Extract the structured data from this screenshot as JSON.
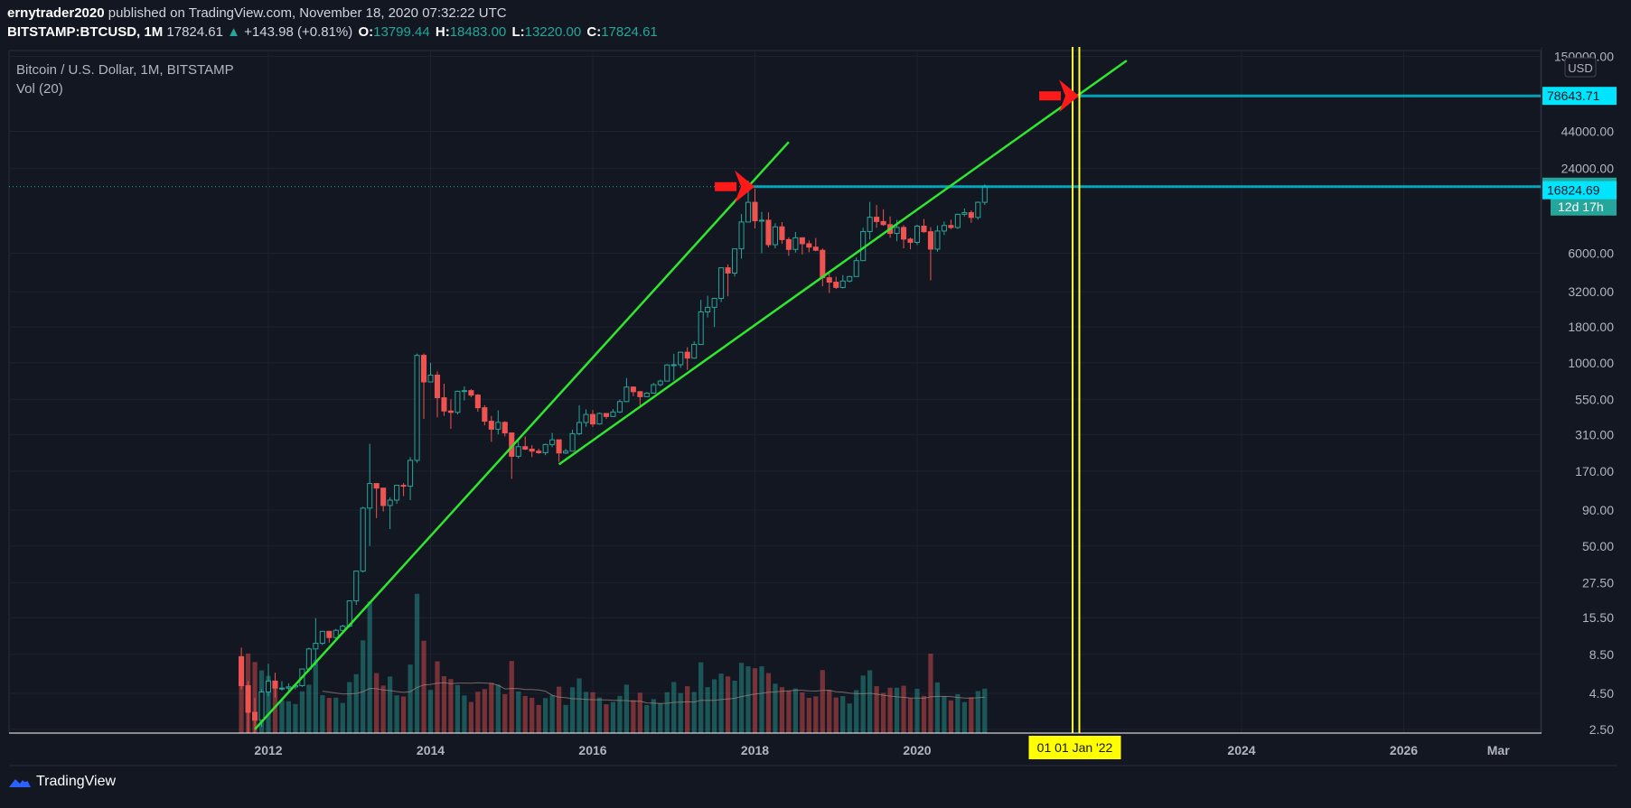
{
  "header": {
    "author": "ernytrader2020",
    "published_text": "published on TradingView.com, November 18, 2020 07:32:22 UTC",
    "symbol": "BITSTAMP:BTCUSD, 1M",
    "price": "17824.61",
    "change": "+143.98 (+0.81%)",
    "o_label": "O:",
    "o": "13799.44",
    "h_label": "H:",
    "h": "18483.00",
    "l_label": "L:",
    "l": "13220.00",
    "c_label": "C:",
    "c": "17824.61"
  },
  "legend": {
    "title": "Bitcoin / U.S. Dollar, 1M, BITSTAMP",
    "vol": "Vol (20)"
  },
  "axis": {
    "currency": "USD",
    "y_ticks": [
      "150000.00",
      "44000.00",
      "24000.00",
      "6000.00",
      "3200.00",
      "1800.00",
      "1000.00",
      "550.00",
      "310.00",
      "170.00",
      "90.00",
      "50.00",
      "27.50",
      "15.50",
      "8.50",
      "4.50",
      "2.50"
    ],
    "x_ticks": [
      "2012",
      "2014",
      "2016",
      "2018",
      "2020",
      "2024",
      "2026",
      "Mar"
    ],
    "x_highlight": "01 01 Jan '22"
  },
  "labels": {
    "target": "78643.71",
    "current": "17824.61",
    "countdown": "12d 17h",
    "secondary": "16824.69"
  },
  "footer": {
    "brand": "TradingView"
  },
  "colors": {
    "background": "#131722",
    "up": "#26a69a",
    "down": "#ef5350",
    "trendline": "#2ee82e",
    "vertical": "#ffff33",
    "arrow": "#ff1a1a",
    "hline": "#00bcd4"
  },
  "chart_data": {
    "type": "candlestick",
    "title": "Bitcoin / U.S. Dollar, 1M, BITSTAMP",
    "y_scale": "log",
    "y_range": [
      2.5,
      150000
    ],
    "x_range": [
      "2011-08",
      "2027-05"
    ],
    "candles": [
      {
        "t": "2011-09",
        "o": 8.2,
        "h": 9.5,
        "l": 4.8,
        "c": 5.1
      },
      {
        "t": "2011-10",
        "o": 5.1,
        "h": 5.5,
        "l": 2.3,
        "c": 3.3
      },
      {
        "t": "2011-11",
        "o": 3.3,
        "h": 4.2,
        "l": 2.0,
        "c": 2.9
      },
      {
        "t": "2011-12",
        "o": 2.9,
        "h": 4.8,
        "l": 2.6,
        "c": 4.6
      },
      {
        "t": "2012-01",
        "o": 4.6,
        "h": 7.3,
        "l": 4.3,
        "c": 5.5
      },
      {
        "t": "2012-02",
        "o": 5.5,
        "h": 6.3,
        "l": 4.2,
        "c": 4.9
      },
      {
        "t": "2012-03",
        "o": 4.9,
        "h": 5.5,
        "l": 4.7,
        "c": 4.9
      },
      {
        "t": "2012-04",
        "o": 4.9,
        "h": 5.3,
        "l": 4.6,
        "c": 5.0
      },
      {
        "t": "2012-05",
        "o": 5.0,
        "h": 5.3,
        "l": 4.8,
        "c": 5.1
      },
      {
        "t": "2012-06",
        "o": 5.1,
        "h": 6.7,
        "l": 5.0,
        "c": 6.7
      },
      {
        "t": "2012-07",
        "o": 6.7,
        "h": 9.5,
        "l": 6.4,
        "c": 9.3
      },
      {
        "t": "2012-08",
        "o": 9.3,
        "h": 15.4,
        "l": 7.1,
        "c": 10.2
      },
      {
        "t": "2012-09",
        "o": 10.2,
        "h": 12.5,
        "l": 9.9,
        "c": 12.4
      },
      {
        "t": "2012-10",
        "o": 12.4,
        "h": 12.5,
        "l": 10.3,
        "c": 11.2
      },
      {
        "t": "2012-11",
        "o": 11.2,
        "h": 12.9,
        "l": 10.6,
        "c": 12.6
      },
      {
        "t": "2012-12",
        "o": 12.6,
        "h": 13.8,
        "l": 12.3,
        "c": 13.5
      },
      {
        "t": "2013-01",
        "o": 13.5,
        "h": 20.4,
        "l": 13.2,
        "c": 20.4
      },
      {
        "t": "2013-02",
        "o": 20.4,
        "h": 33.3,
        "l": 19.1,
        "c": 33.2
      },
      {
        "t": "2013-03",
        "o": 33.2,
        "h": 95,
        "l": 32.5,
        "c": 93
      },
      {
        "t": "2013-04",
        "o": 93,
        "h": 266,
        "l": 50,
        "c": 139
      },
      {
        "t": "2013-05",
        "o": 139,
        "h": 140,
        "l": 79,
        "c": 129
      },
      {
        "t": "2013-06",
        "o": 129,
        "h": 129,
        "l": 88,
        "c": 97
      },
      {
        "t": "2013-07",
        "o": 97,
        "h": 111,
        "l": 66,
        "c": 106
      },
      {
        "t": "2013-08",
        "o": 106,
        "h": 126,
        "l": 100,
        "c": 135
      },
      {
        "t": "2013-09",
        "o": 135,
        "h": 140,
        "l": 113,
        "c": 133
      },
      {
        "t": "2013-10",
        "o": 133,
        "h": 214,
        "l": 106,
        "c": 203
      },
      {
        "t": "2013-11",
        "o": 203,
        "h": 1163,
        "l": 195,
        "c": 1130
      },
      {
        "t": "2013-12",
        "o": 1130,
        "h": 1163,
        "l": 400,
        "c": 732
      },
      {
        "t": "2014-01",
        "o": 732,
        "h": 1000,
        "l": 730,
        "c": 818
      },
      {
        "t": "2014-02",
        "o": 818,
        "h": 870,
        "l": 410,
        "c": 565
      },
      {
        "t": "2014-03",
        "o": 565,
        "h": 710,
        "l": 420,
        "c": 455
      },
      {
        "t": "2014-04",
        "o": 455,
        "h": 550,
        "l": 340,
        "c": 445
      },
      {
        "t": "2014-05",
        "o": 445,
        "h": 635,
        "l": 430,
        "c": 628
      },
      {
        "t": "2014-06",
        "o": 628,
        "h": 680,
        "l": 540,
        "c": 635
      },
      {
        "t": "2014-07",
        "o": 635,
        "h": 650,
        "l": 570,
        "c": 590
      },
      {
        "t": "2014-08",
        "o": 590,
        "h": 600,
        "l": 450,
        "c": 480
      },
      {
        "t": "2014-09",
        "o": 480,
        "h": 500,
        "l": 360,
        "c": 385
      },
      {
        "t": "2014-10",
        "o": 385,
        "h": 420,
        "l": 275,
        "c": 338
      },
      {
        "t": "2014-11",
        "o": 338,
        "h": 460,
        "l": 310,
        "c": 378
      },
      {
        "t": "2014-12",
        "o": 378,
        "h": 385,
        "l": 300,
        "c": 318
      },
      {
        "t": "2015-01",
        "o": 318,
        "h": 320,
        "l": 150,
        "c": 217
      },
      {
        "t": "2015-02",
        "o": 217,
        "h": 280,
        "l": 209,
        "c": 254
      },
      {
        "t": "2015-03",
        "o": 254,
        "h": 300,
        "l": 240,
        "c": 244
      },
      {
        "t": "2015-04",
        "o": 244,
        "h": 260,
        "l": 214,
        "c": 236
      },
      {
        "t": "2015-05",
        "o": 236,
        "h": 246,
        "l": 226,
        "c": 230
      },
      {
        "t": "2015-06",
        "o": 230,
        "h": 267,
        "l": 221,
        "c": 263
      },
      {
        "t": "2015-07",
        "o": 263,
        "h": 318,
        "l": 252,
        "c": 284
      },
      {
        "t": "2015-08",
        "o": 284,
        "h": 285,
        "l": 198,
        "c": 229
      },
      {
        "t": "2015-09",
        "o": 229,
        "h": 245,
        "l": 225,
        "c": 236
      },
      {
        "t": "2015-10",
        "o": 236,
        "h": 335,
        "l": 235,
        "c": 314
      },
      {
        "t": "2015-11",
        "o": 314,
        "h": 500,
        "l": 306,
        "c": 377
      },
      {
        "t": "2015-12",
        "o": 377,
        "h": 468,
        "l": 352,
        "c": 430
      },
      {
        "t": "2016-01",
        "o": 430,
        "h": 463,
        "l": 350,
        "c": 368
      },
      {
        "t": "2016-02",
        "o": 368,
        "h": 444,
        "l": 364,
        "c": 437
      },
      {
        "t": "2016-03",
        "o": 437,
        "h": 440,
        "l": 400,
        "c": 416
      },
      {
        "t": "2016-04",
        "o": 416,
        "h": 470,
        "l": 412,
        "c": 448
      },
      {
        "t": "2016-05",
        "o": 448,
        "h": 550,
        "l": 440,
        "c": 531
      },
      {
        "t": "2016-06",
        "o": 531,
        "h": 780,
        "l": 525,
        "c": 673
      },
      {
        "t": "2016-07",
        "o": 673,
        "h": 680,
        "l": 580,
        "c": 624
      },
      {
        "t": "2016-08",
        "o": 624,
        "h": 630,
        "l": 480,
        "c": 575
      },
      {
        "t": "2016-09",
        "o": 575,
        "h": 620,
        "l": 570,
        "c": 609
      },
      {
        "t": "2016-10",
        "o": 609,
        "h": 720,
        "l": 605,
        "c": 700
      },
      {
        "t": "2016-11",
        "o": 700,
        "h": 760,
        "l": 680,
        "c": 742
      },
      {
        "t": "2016-12",
        "o": 742,
        "h": 980,
        "l": 740,
        "c": 966
      },
      {
        "t": "2017-01",
        "o": 966,
        "h": 1160,
        "l": 750,
        "c": 970
      },
      {
        "t": "2017-02",
        "o": 970,
        "h": 1200,
        "l": 920,
        "c": 1190
      },
      {
        "t": "2017-03",
        "o": 1190,
        "h": 1290,
        "l": 890,
        "c": 1080
      },
      {
        "t": "2017-04",
        "o": 1080,
        "h": 1420,
        "l": 1070,
        "c": 1350
      },
      {
        "t": "2017-05",
        "o": 1350,
        "h": 2800,
        "l": 1340,
        "c": 2300
      },
      {
        "t": "2017-06",
        "o": 2300,
        "h": 3000,
        "l": 2100,
        "c": 2480
      },
      {
        "t": "2017-07",
        "o": 2480,
        "h": 2900,
        "l": 1800,
        "c": 2870
      },
      {
        "t": "2017-08",
        "o": 2870,
        "h": 4750,
        "l": 2700,
        "c": 4730
      },
      {
        "t": "2017-09",
        "o": 4730,
        "h": 5000,
        "l": 2970,
        "c": 4340
      },
      {
        "t": "2017-10",
        "o": 4340,
        "h": 6470,
        "l": 4100,
        "c": 6450
      },
      {
        "t": "2017-11",
        "o": 6450,
        "h": 11400,
        "l": 5500,
        "c": 10000
      },
      {
        "t": "2017-12",
        "o": 10000,
        "h": 19666,
        "l": 10000,
        "c": 13800
      },
      {
        "t": "2018-01",
        "o": 13800,
        "h": 17200,
        "l": 9000,
        "c": 10200
      },
      {
        "t": "2018-02",
        "o": 10200,
        "h": 11800,
        "l": 6000,
        "c": 10300
      },
      {
        "t": "2018-03",
        "o": 10300,
        "h": 11700,
        "l": 6600,
        "c": 6900
      },
      {
        "t": "2018-04",
        "o": 6900,
        "h": 9800,
        "l": 6500,
        "c": 9240
      },
      {
        "t": "2018-05",
        "o": 9240,
        "h": 10000,
        "l": 7000,
        "c": 7500
      },
      {
        "t": "2018-06",
        "o": 7500,
        "h": 7800,
        "l": 5750,
        "c": 6390
      },
      {
        "t": "2018-07",
        "o": 6390,
        "h": 8500,
        "l": 6070,
        "c": 7730
      },
      {
        "t": "2018-08",
        "o": 7730,
        "h": 7760,
        "l": 5880,
        "c": 7010
      },
      {
        "t": "2018-09",
        "o": 7010,
        "h": 7400,
        "l": 6100,
        "c": 6630
      },
      {
        "t": "2018-10",
        "o": 6630,
        "h": 7700,
        "l": 6200,
        "c": 6300
      },
      {
        "t": "2018-11",
        "o": 6300,
        "h": 6500,
        "l": 3500,
        "c": 4020
      },
      {
        "t": "2018-12",
        "o": 4020,
        "h": 4300,
        "l": 3130,
        "c": 3740
      },
      {
        "t": "2019-01",
        "o": 3740,
        "h": 4090,
        "l": 3350,
        "c": 3430
      },
      {
        "t": "2019-02",
        "o": 3430,
        "h": 4200,
        "l": 3370,
        "c": 3810
      },
      {
        "t": "2019-03",
        "o": 3810,
        "h": 4140,
        "l": 3720,
        "c": 4100
      },
      {
        "t": "2019-04",
        "o": 4100,
        "h": 5600,
        "l": 4100,
        "c": 5320
      },
      {
        "t": "2019-05",
        "o": 5320,
        "h": 9100,
        "l": 5330,
        "c": 8560
      },
      {
        "t": "2019-06",
        "o": 8560,
        "h": 13880,
        "l": 7500,
        "c": 10820
      },
      {
        "t": "2019-07",
        "o": 10820,
        "h": 13200,
        "l": 9100,
        "c": 10080
      },
      {
        "t": "2019-08",
        "o": 10080,
        "h": 12300,
        "l": 9400,
        "c": 9580
      },
      {
        "t": "2019-09",
        "o": 9580,
        "h": 10950,
        "l": 7730,
        "c": 8300
      },
      {
        "t": "2019-10",
        "o": 8300,
        "h": 10350,
        "l": 7300,
        "c": 9150
      },
      {
        "t": "2019-11",
        "o": 9150,
        "h": 9500,
        "l": 6500,
        "c": 7560
      },
      {
        "t": "2019-12",
        "o": 7560,
        "h": 7750,
        "l": 6400,
        "c": 7170
      },
      {
        "t": "2020-01",
        "o": 7170,
        "h": 9580,
        "l": 6870,
        "c": 9350
      },
      {
        "t": "2020-02",
        "o": 9350,
        "h": 10500,
        "l": 8400,
        "c": 8530
      },
      {
        "t": "2020-03",
        "o": 8530,
        "h": 9190,
        "l": 3850,
        "c": 6420
      },
      {
        "t": "2020-04",
        "o": 6420,
        "h": 9450,
        "l": 6150,
        "c": 8630
      },
      {
        "t": "2020-05",
        "o": 8630,
        "h": 10070,
        "l": 8100,
        "c": 9450
      },
      {
        "t": "2020-06",
        "o": 9450,
        "h": 10380,
        "l": 8900,
        "c": 9140
      },
      {
        "t": "2020-07",
        "o": 9140,
        "h": 11440,
        "l": 8920,
        "c": 11340
      },
      {
        "t": "2020-08",
        "o": 11340,
        "h": 12470,
        "l": 10960,
        "c": 11650
      },
      {
        "t": "2020-09",
        "o": 11650,
        "h": 12090,
        "l": 9880,
        "c": 10780
      },
      {
        "t": "2020-10",
        "o": 10780,
        "h": 14000,
        "l": 10400,
        "c": 13800
      },
      {
        "t": "2020-11",
        "o": 13799.44,
        "h": 18483,
        "l": 13220,
        "c": 17824.61
      }
    ],
    "trendlines": [
      {
        "from": {
          "t": "2011-11",
          "p": 2.5
        },
        "to": {
          "t": "2018-06",
          "p": 37000
        }
      },
      {
        "from": {
          "t": "2015-08",
          "p": 190
        },
        "to": {
          "t": "2022-08",
          "p": 140000
        }
      }
    ],
    "horizontal_lines": [
      {
        "from_t": "2017-12",
        "p": 17824.61
      },
      {
        "from_t": "2021-12",
        "p": 78643.71
      }
    ],
    "vertical_lines": [
      "2021-12",
      "2022-01"
    ],
    "arrows": [
      {
        "t": "2017-10",
        "p": 17824.61
      },
      {
        "t": "2021-10",
        "p": 78643.71
      }
    ]
  }
}
